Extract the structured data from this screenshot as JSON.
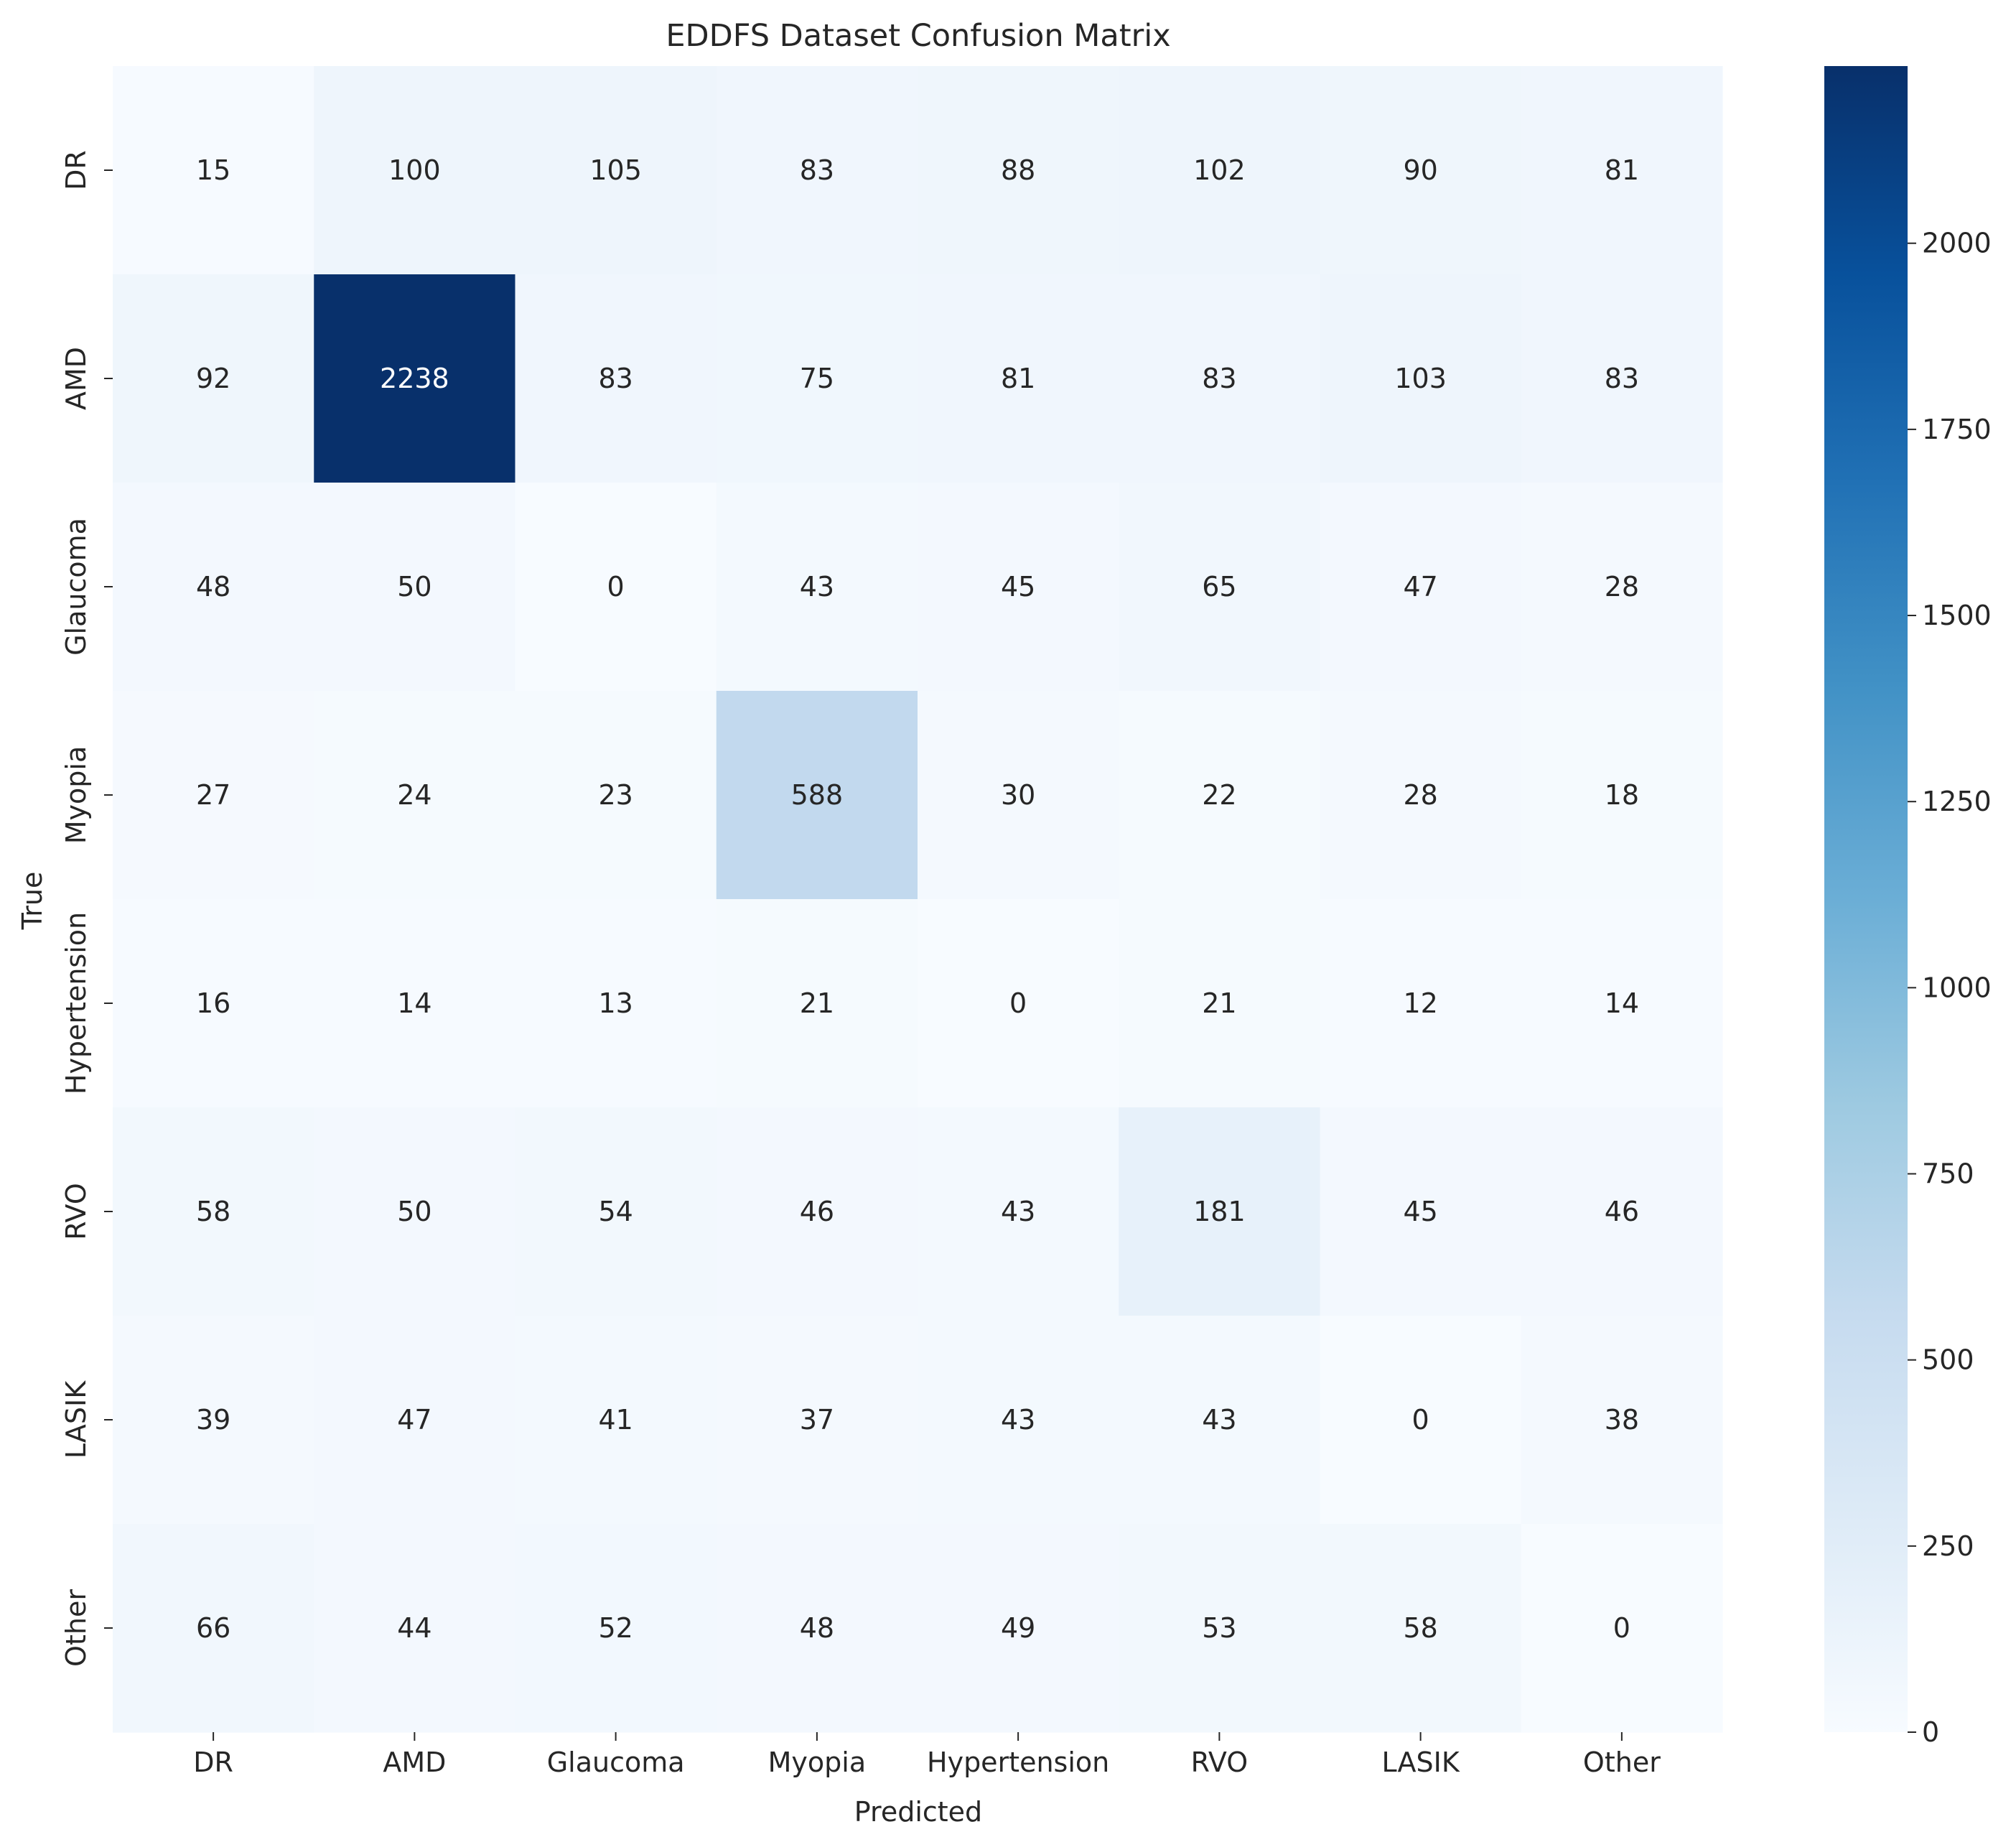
{
  "chart_data": {
    "type": "heatmap",
    "title": "EDDFS Dataset Confusion Matrix",
    "xlabel": "Predicted",
    "ylabel": "True",
    "x_categories": [
      "DR",
      "AMD",
      "Glaucoma",
      "Myopia",
      "Hypertension",
      "RVO",
      "LASIK",
      "Other"
    ],
    "y_categories": [
      "DR",
      "AMD",
      "Glaucoma",
      "Myopia",
      "Hypertension",
      "RVO",
      "LASIK",
      "Other"
    ],
    "values": [
      [
        15,
        100,
        105,
        83,
        88,
        102,
        90,
        81
      ],
      [
        92,
        2238,
        83,
        75,
        81,
        83,
        103,
        83
      ],
      [
        48,
        50,
        0,
        43,
        45,
        65,
        47,
        28
      ],
      [
        27,
        24,
        23,
        588,
        30,
        22,
        28,
        18
      ],
      [
        16,
        14,
        13,
        21,
        0,
        21,
        12,
        14
      ],
      [
        58,
        50,
        54,
        46,
        43,
        181,
        45,
        46
      ],
      [
        39,
        47,
        41,
        37,
        43,
        43,
        0,
        38
      ],
      [
        66,
        44,
        52,
        48,
        49,
        53,
        58,
        0
      ]
    ],
    "colormap": "Blues",
    "vmin": 0,
    "vmax": 2238,
    "colorbar_ticks": [
      0,
      250,
      500,
      750,
      1000,
      1250,
      1500,
      1750,
      2000
    ]
  }
}
